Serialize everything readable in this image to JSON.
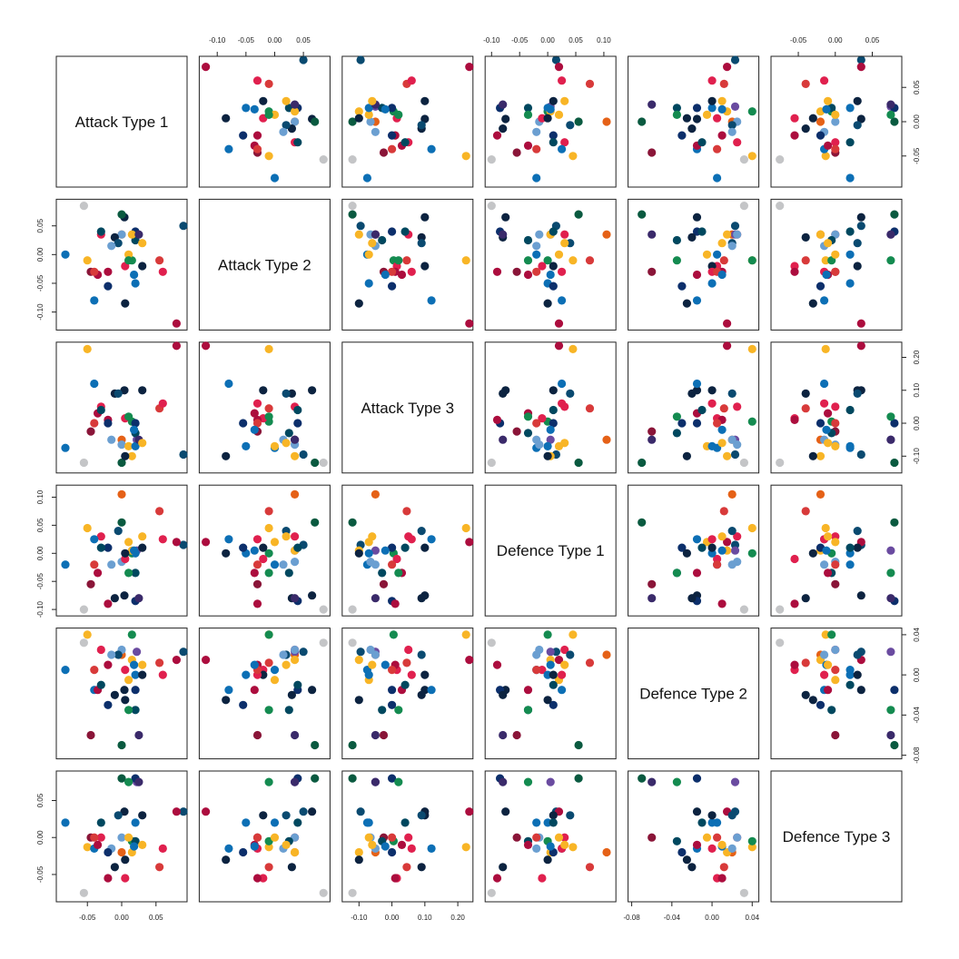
{
  "chart_data": {
    "type": "scatter",
    "subtype": "pairs-matrix",
    "variables": [
      "Attack Type 1",
      "Attack Type 2",
      "Attack Type 3",
      "Defence Type 1",
      "Defence Type 2",
      "Defence Type 3"
    ],
    "ranges": [
      [
        -0.09,
        0.09
      ],
      [
        -0.125,
        0.09
      ],
      [
        -0.14,
        0.235
      ],
      [
        -0.105,
        0.115
      ],
      [
        -0.08,
        0.043
      ],
      [
        -0.082,
        0.085
      ]
    ],
    "ticks": [
      [
        "-0.05",
        "0.00",
        "0.05"
      ],
      [
        "-0.10",
        "-0.05",
        "0.00",
        "0.05"
      ],
      [
        "-0.10",
        "0.00",
        "0.10",
        "0.20"
      ],
      [
        "-0.10",
        "-0.05",
        "0.00",
        "0.05",
        "0.10"
      ],
      [
        "-0.08",
        "-0.04",
        "0.00",
        "0.04"
      ],
      [
        "-0.05",
        "0.00",
        "0.05"
      ]
    ],
    "grid": false,
    "legend": "none",
    "point_colors": [
      "#c4c5c7",
      "#0c6fb5",
      "#0c2340",
      "#00485f",
      "#0a4a70",
      "#e0204e",
      "#ac0d3e",
      "#f8b526",
      "#e56117",
      "#6a4ba0",
      "#148b50",
      "#6b9fd1",
      "#0c2f6b",
      "#d83a3a",
      "#8a1538",
      "#0a5a40",
      "#3a2a6a"
    ],
    "points": [
      {
        "c": 0,
        "v": [
          -0.055,
          0.085,
          -0.12,
          -0.1,
          0.032,
          -0.075
        ]
      },
      {
        "c": 1,
        "v": [
          -0.082,
          0.0,
          -0.075,
          -0.02,
          0.005,
          0.02
        ]
      },
      {
        "c": 2,
        "v": [
          0.004,
          0.065,
          0.1,
          -0.075,
          -0.015,
          0.035
        ]
      },
      {
        "c": 4,
        "v": [
          0.09,
          0.05,
          -0.095,
          0.015,
          0.023,
          0.035
        ]
      },
      {
        "c": 5,
        "v": [
          -0.03,
          0.035,
          0.05,
          0.03,
          0.025,
          0.0
        ]
      },
      {
        "c": 6,
        "v": [
          0.08,
          -0.12,
          0.235,
          0.02,
          0.015,
          0.035
        ]
      },
      {
        "c": 7,
        "v": [
          -0.05,
          -0.01,
          0.225,
          0.045,
          0.04,
          -0.013
        ]
      },
      {
        "c": 8,
        "v": [
          0.0,
          0.035,
          -0.05,
          0.105,
          0.02,
          -0.02
        ]
      },
      {
        "c": 9,
        "v": [
          0.022,
          0.035,
          -0.05,
          0.005,
          0.023,
          0.075
        ]
      },
      {
        "c": 10,
        "v": [
          0.015,
          -0.01,
          0.005,
          0.0,
          0.04,
          -0.005
        ]
      },
      {
        "c": 11,
        "v": [
          0.0,
          0.035,
          -0.065,
          -0.015,
          0.025,
          0.0
        ]
      },
      {
        "c": 12,
        "v": [
          0.02,
          0.04,
          0.0,
          -0.085,
          -0.015,
          0.08
        ]
      },
      {
        "c": 13,
        "v": [
          0.055,
          -0.01,
          0.045,
          0.075,
          0.012,
          -0.04
        ]
      },
      {
        "c": 14,
        "v": [
          -0.045,
          -0.03,
          -0.025,
          -0.055,
          -0.06,
          0.0
        ]
      },
      {
        "c": 15,
        "v": [
          0.0,
          0.07,
          -0.12,
          0.055,
          -0.07,
          0.08
        ]
      },
      {
        "c": 1,
        "v": [
          -0.04,
          -0.08,
          0.12,
          0.025,
          -0.015,
          -0.015
        ]
      },
      {
        "c": 2,
        "v": [
          -0.01,
          0.03,
          0.09,
          -0.08,
          -0.02,
          -0.04
        ]
      },
      {
        "c": 3,
        "v": [
          0.02,
          0.025,
          -0.03,
          -0.035,
          -0.035,
          -0.005
        ]
      },
      {
        "c": 5,
        "v": [
          0.005,
          -0.02,
          0.015,
          -0.01,
          0.005,
          -0.055
        ]
      },
      {
        "c": 6,
        "v": [
          -0.02,
          -0.03,
          0.01,
          -0.09,
          0.01,
          -0.055
        ]
      },
      {
        "c": 7,
        "v": [
          0.01,
          0.0,
          -0.07,
          0.02,
          -0.005,
          0.0
        ]
      },
      {
        "c": 1,
        "v": [
          0.02,
          -0.05,
          -0.07,
          0.0,
          0.0,
          0.02
        ]
      },
      {
        "c": 2,
        "v": [
          0.03,
          -0.02,
          0.1,
          0.01,
          0.0,
          0.03
        ]
      },
      {
        "c": 4,
        "v": [
          -0.005,
          0.02,
          0.09,
          0.04,
          0.02,
          0.03
        ]
      },
      {
        "c": 5,
        "v": [
          0.06,
          -0.03,
          0.06,
          0.025,
          0.0,
          -0.015
        ]
      },
      {
        "c": 6,
        "v": [
          -0.035,
          -0.035,
          0.03,
          -0.035,
          -0.015,
          -0.01
        ]
      },
      {
        "c": 7,
        "v": [
          0.015,
          0.035,
          -0.1,
          0.005,
          0.015,
          -0.02
        ]
      },
      {
        "c": 10,
        "v": [
          0.01,
          -0.01,
          0.02,
          -0.035,
          -0.035,
          0.075
        ]
      },
      {
        "c": 11,
        "v": [
          -0.015,
          0.015,
          -0.05,
          -0.02,
          0.02,
          -0.015
        ]
      },
      {
        "c": 12,
        "v": [
          -0.02,
          -0.055,
          0.0,
          0.01,
          -0.03,
          -0.02
        ]
      },
      {
        "c": 13,
        "v": [
          -0.04,
          -0.03,
          0.0,
          -0.02,
          0.005,
          0.0
        ]
      },
      {
        "c": 16,
        "v": [
          0.025,
          0.035,
          -0.05,
          -0.08,
          -0.06,
          0.075
        ]
      },
      {
        "c": 3,
        "v": [
          -0.03,
          0.04,
          0.04,
          0.01,
          -0.01,
          0.02
        ]
      },
      {
        "c": 1,
        "v": [
          0.018,
          -0.035,
          -0.02,
          0.005,
          0.01,
          -0.012
        ]
      },
      {
        "c": 7,
        "v": [
          0.03,
          0.02,
          -0.06,
          0.03,
          0.01,
          -0.01
        ]
      },
      {
        "c": 2,
        "v": [
          0.005,
          -0.085,
          -0.1,
          0.0,
          -0.025,
          -0.03
        ]
      }
    ]
  }
}
